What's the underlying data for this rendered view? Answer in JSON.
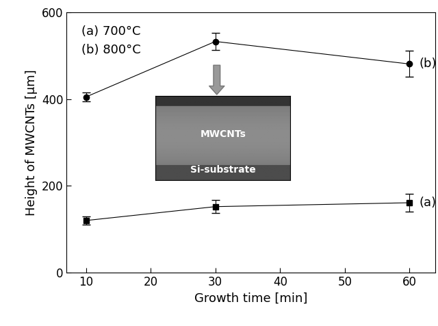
{
  "chart_data": {
    "type": "line",
    "xlabel": "Growth time [min]",
    "ylabel": "Height of MWCNTs [μm]",
    "x": [
      10,
      30,
      60
    ],
    "xlim": [
      7,
      64
    ],
    "xticks": [
      10,
      20,
      30,
      40,
      50,
      60
    ],
    "ylim": [
      0,
      600
    ],
    "yticks": [
      0,
      200,
      400,
      600
    ],
    "grid": false,
    "annotations": [
      "(a) 700°C",
      "(b) 800°C"
    ],
    "inset_labels": [
      "MWCNTs",
      "Si-substrate"
    ],
    "series": [
      {
        "name": "(a)",
        "color": "#000000",
        "marker": "square",
        "line_style": "solid",
        "values": [
          120,
          152,
          161
        ],
        "errors": [
          10,
          15,
          20
        ]
      },
      {
        "name": "(b)",
        "color": "#000000",
        "marker": "circle",
        "line_style": "solid",
        "values": [
          405,
          533,
          481
        ],
        "errors": [
          10,
          20,
          30
        ]
      }
    ]
  }
}
